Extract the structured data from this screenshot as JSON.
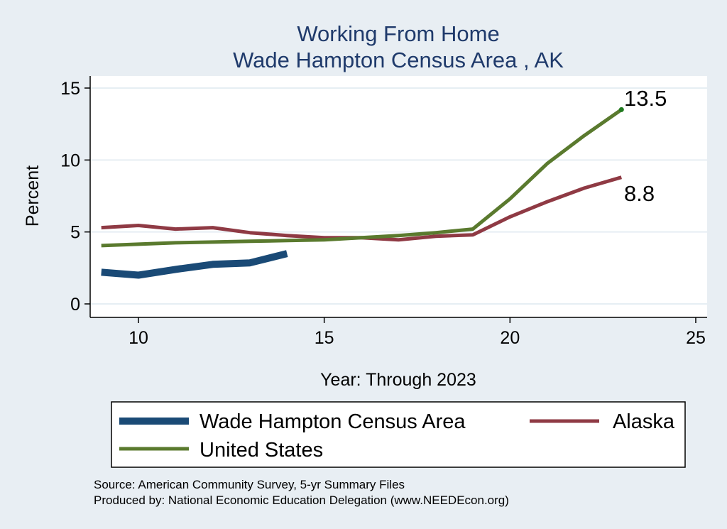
{
  "chart_data": {
    "type": "line",
    "title": "Working From Home",
    "subtitle": "Wade Hampton Census Area , AK",
    "xlabel": "Year: Through 2023",
    "ylabel": "Percent",
    "xlim": [
      9,
      25
    ],
    "ylim": [
      0,
      15
    ],
    "xticks": [
      10,
      15,
      20,
      25
    ],
    "yticks": [
      0,
      5,
      10,
      15
    ],
    "grid": true,
    "legend_position": "bottom",
    "series": [
      {
        "name": "Wade Hampton Census Area",
        "color": "#1a4a76",
        "x": [
          9,
          10,
          11,
          12,
          13,
          14
        ],
        "y": [
          2.2,
          2.0,
          2.4,
          2.75,
          2.85,
          3.5
        ]
      },
      {
        "name": "Alaska",
        "color": "#8f3a44",
        "x": [
          9,
          10,
          11,
          12,
          13,
          14,
          15,
          16,
          17,
          18,
          19,
          20,
          21,
          22,
          23
        ],
        "y": [
          5.3,
          5.45,
          5.2,
          5.3,
          4.95,
          4.75,
          4.6,
          4.6,
          4.45,
          4.7,
          4.8,
          6.05,
          7.1,
          8.05,
          8.8
        ]
      },
      {
        "name": "United States",
        "color": "#5a7a2e",
        "x": [
          9,
          10,
          11,
          12,
          13,
          14,
          15,
          16,
          17,
          18,
          19,
          20,
          21,
          22,
          23
        ],
        "y": [
          4.05,
          4.15,
          4.25,
          4.3,
          4.35,
          4.4,
          4.45,
          4.6,
          4.75,
          4.95,
          5.2,
          7.3,
          9.75,
          11.7,
          13.5
        ]
      }
    ],
    "end_labels": [
      "13.5",
      "8.8"
    ],
    "notes": [
      "Source: American Community Survey, 5-yr Summary Files",
      "Produced by: National Economic Education Delegation (www.NEEDEcon.org)"
    ]
  }
}
